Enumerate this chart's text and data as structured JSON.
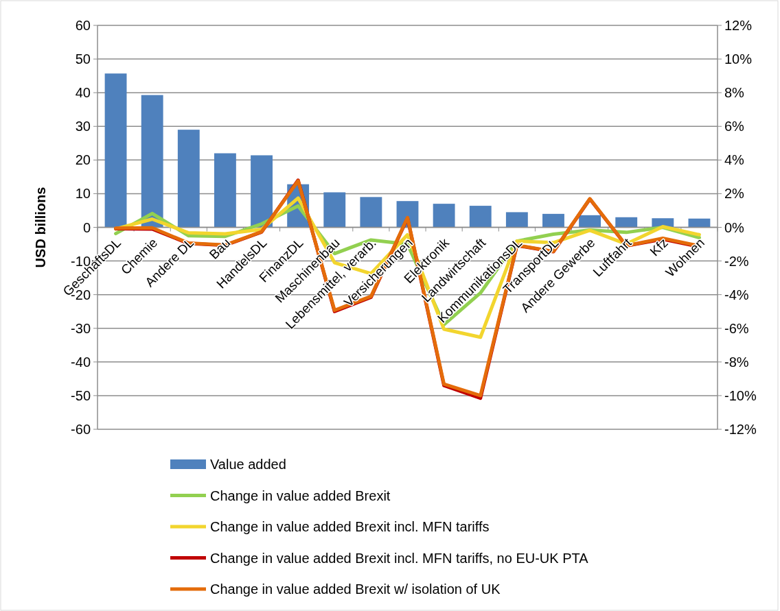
{
  "chart_data": {
    "type": "bar",
    "ylabel": "USD billions",
    "categories": [
      "GeschäftsDL",
      "Chemie",
      "Andere DL",
      "Bau",
      "HandelsDL",
      "FinanzDL",
      "Maschinenbau",
      "Lebensmittel, verarb.",
      "Versicherungen",
      "Elektronik",
      "Landwirtschaft",
      "KommunikationsDL",
      "TransportDL",
      "Andere Gewerbe",
      "Luftfahrt",
      "Kfz",
      "Wohnen"
    ],
    "series": [
      {
        "name": "Value added",
        "color": "#4f81bd",
        "values": [
          45.7,
          39.3,
          29,
          22,
          21.4,
          12.8,
          10.4,
          9,
          7.8,
          7,
          6.4,
          4.5,
          4,
          3.6,
          3,
          2.7,
          2.6
        ]
      },
      {
        "name": "Change in value added Brexit",
        "type": "line",
        "axis": "y2",
        "color": "#92d050",
        "values": [
          -0.37,
          0.82,
          -0.5,
          -0.54,
          0.2,
          1.27,
          -1.56,
          -0.75,
          -1.0,
          -5.78,
          -3.9,
          -0.82,
          -0.41,
          -0.16,
          -0.3,
          0,
          -0.61
        ]
      },
      {
        "name": "Change in value added Brexit incl. MFN tariffs",
        "type": "line",
        "axis": "y2",
        "color": "#f2d52e",
        "values": [
          -0.1,
          0.49,
          -0.33,
          -0.39,
          -0.12,
          1.74,
          -2.1,
          -2.75,
          -0.44,
          -6.05,
          -6.53,
          -0.82,
          -0.91,
          -0.18,
          -0.99,
          0.04,
          -0.44
        ]
      },
      {
        "name": "Change in value added Brexit incl. MFN tariffs, no EU-UK PTA",
        "type": "line",
        "axis": "y2",
        "color": "#c00000",
        "values": [
          -0.08,
          -0.1,
          -0.96,
          -1.07,
          -0.28,
          2.8,
          -5.0,
          -4.15,
          0.55,
          -9.4,
          -10.15,
          -1.08,
          -1.45,
          1.68,
          -1.1,
          -0.7,
          -1.15
        ]
      },
      {
        "name": "Change in value added Brexit w/ isolation of UK",
        "type": "line",
        "axis": "y2",
        "color": "#e46c0a",
        "values": [
          -0.05,
          -0.03,
          -0.94,
          -1.05,
          -0.26,
          2.76,
          -4.93,
          -4.1,
          0.58,
          -9.32,
          -10.0,
          -1.06,
          -1.43,
          1.7,
          -1.09,
          -0.65,
          -1.11
        ]
      }
    ],
    "ylim": [
      -60,
      60
    ],
    "yticks": [
      -60,
      -50,
      -40,
      -30,
      -20,
      -10,
      0,
      10,
      20,
      30,
      40,
      50,
      60
    ],
    "y2lim": [
      -12,
      12
    ],
    "y2ticks": [
      {
        "value": -12,
        "label": "-12%"
      },
      {
        "value": -10,
        "label": "-10%"
      },
      {
        "value": -8,
        "label": "-8%"
      },
      {
        "value": -6,
        "label": "-6%"
      },
      {
        "value": -4,
        "label": "-4%"
      },
      {
        "value": -2,
        "label": "-2%"
      },
      {
        "value": 0,
        "label": "0%"
      },
      {
        "value": 2,
        "label": "2%"
      },
      {
        "value": 4,
        "label": "4%"
      },
      {
        "value": 6,
        "label": "6%"
      },
      {
        "value": 8,
        "label": "8%"
      },
      {
        "value": 10,
        "label": "10%"
      },
      {
        "value": 12,
        "label": "12%"
      }
    ],
    "grid": "y",
    "legend": "bottom"
  }
}
